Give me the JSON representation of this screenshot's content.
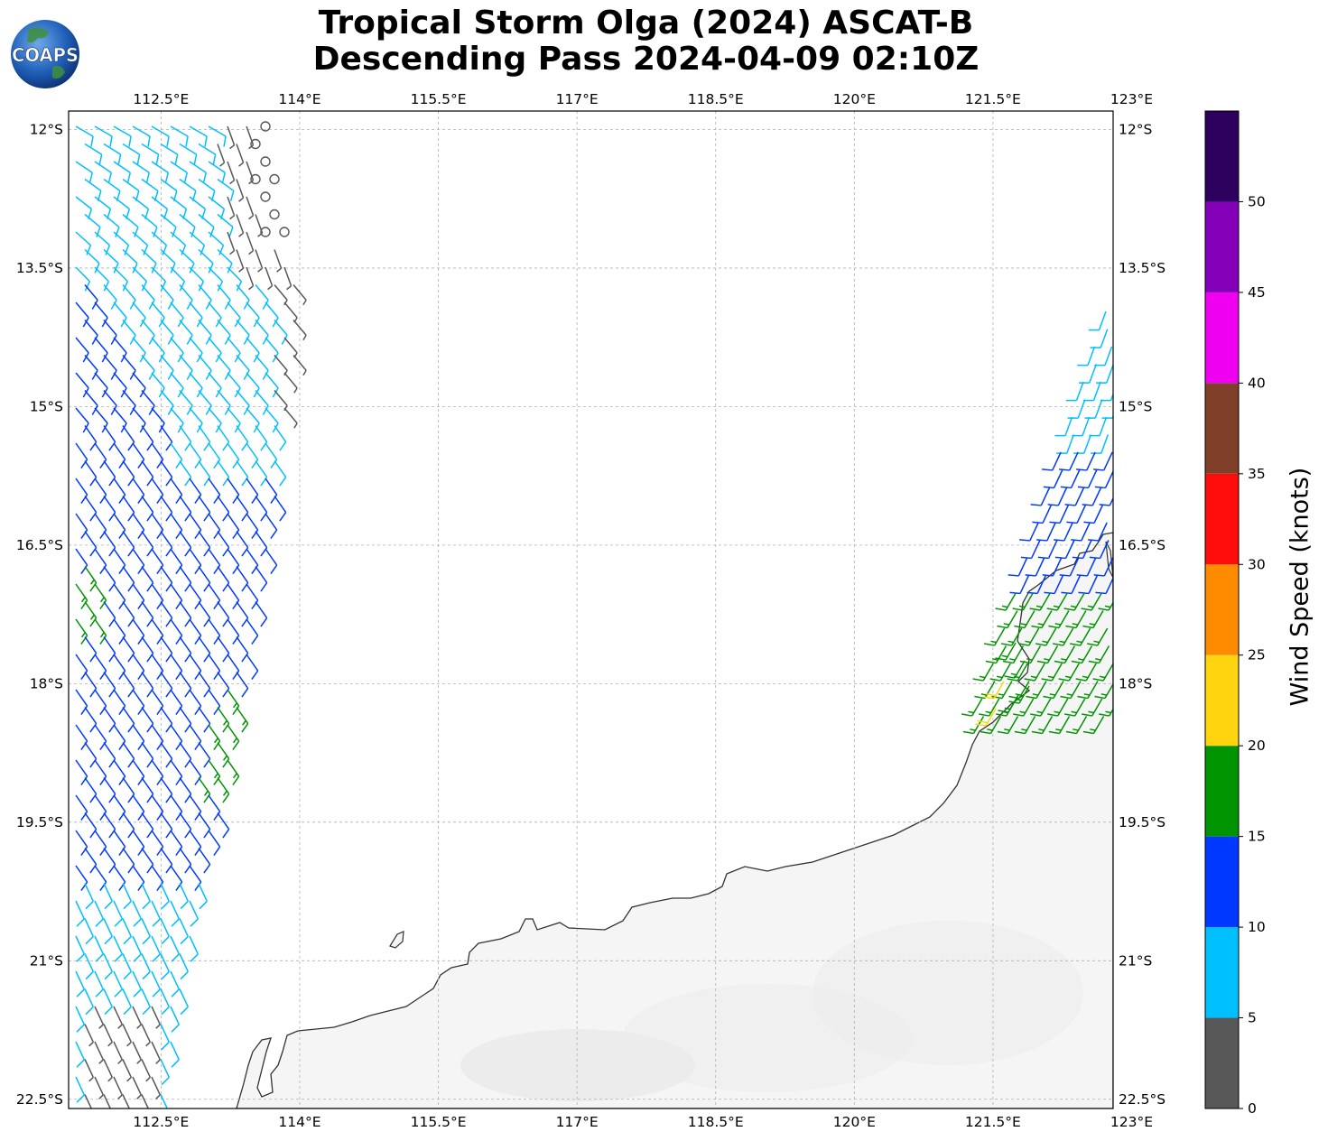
{
  "title": {
    "line1": "Tropical Storm Olga (2024) ASCAT-B",
    "line2": "Descending Pass 2024-04-09 02:10Z"
  },
  "logo": {
    "text": "COAPS",
    "icon": "globe-icon"
  },
  "map": {
    "lon_ticks": [
      "112.5°E",
      "114°E",
      "115.5°E",
      "117°E",
      "118.5°E",
      "120°E",
      "121.5°E",
      "123°E"
    ],
    "lon_values": [
      112.5,
      114,
      115.5,
      117,
      118.5,
      120,
      121.5,
      123
    ],
    "lat_ticks": [
      "12°S",
      "13.5°S",
      "15°S",
      "16.5°S",
      "18°S",
      "19.5°S",
      "21°S",
      "22.5°S"
    ],
    "lat_values": [
      -12,
      -13.5,
      -15,
      -16.5,
      -18,
      -19.5,
      -21,
      -22.5
    ],
    "lon_range": [
      111.5,
      122.8
    ],
    "lat_range": [
      -11.8,
      -22.6
    ],
    "land_color": "#f5f5f5",
    "coast_color": "#333333",
    "grid": true
  },
  "colorbar": {
    "label": "Wind Speed (knots)",
    "ticks": [
      "0",
      "5",
      "10",
      "15",
      "20",
      "25",
      "30",
      "35",
      "40",
      "45",
      "50"
    ],
    "tick_values": [
      0,
      5,
      10,
      15,
      20,
      25,
      30,
      35,
      40,
      45,
      50
    ],
    "max": 55,
    "bins": [
      {
        "from": 0,
        "to": 5,
        "color": "#585858"
      },
      {
        "from": 5,
        "to": 10,
        "color": "#00bfff"
      },
      {
        "from": 10,
        "to": 15,
        "color": "#0038ff"
      },
      {
        "from": 15,
        "to": 20,
        "color": "#009400"
      },
      {
        "from": 20,
        "to": 25,
        "color": "#ffd510"
      },
      {
        "from": 25,
        "to": 30,
        "color": "#ff8c00"
      },
      {
        "from": 30,
        "to": 35,
        "color": "#ff0c0c"
      },
      {
        "from": 35,
        "to": 40,
        "color": "#7f3f28"
      },
      {
        "from": 40,
        "to": 45,
        "color": "#f000f0"
      },
      {
        "from": 45,
        "to": 50,
        "color": "#8300b8"
      },
      {
        "from": 50,
        "to": 55,
        "color": "#2e005e"
      }
    ]
  }
}
